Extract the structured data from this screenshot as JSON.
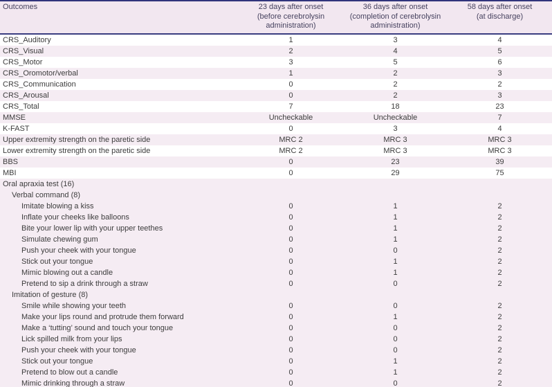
{
  "colors": {
    "border_navy": "#31347c",
    "header_separator_navy": "#3a3e80",
    "header_background_pink": "#f2e7f0",
    "row_alternate_pink": "#f5ecf3",
    "header_text": "#46425f",
    "body_text": "#3c3c3c"
  },
  "table": {
    "header": {
      "outcomes_label": "Outcomes",
      "columns": [
        "23 days after onset\n(before cerebrolysin\nadministration)",
        "36 days after onset\n(completion of cerebrolysin\nadministration)",
        "58 days after onset\n(at discharge)"
      ]
    },
    "rows": [
      {
        "label": "CRS_Auditory",
        "indent": 0,
        "shade": "white",
        "values": [
          "1",
          "3",
          "4"
        ]
      },
      {
        "label": "CRS_Visual",
        "indent": 0,
        "shade": "pink",
        "values": [
          "2",
          "4",
          "5"
        ]
      },
      {
        "label": "CRS_Motor",
        "indent": 0,
        "shade": "white",
        "values": [
          "3",
          "5",
          "6"
        ]
      },
      {
        "label": "CRS_Oromotor/verbal",
        "indent": 0,
        "shade": "pink",
        "values": [
          "1",
          "2",
          "3"
        ]
      },
      {
        "label": "CRS_Communication",
        "indent": 0,
        "shade": "white",
        "values": [
          "0",
          "2",
          "2"
        ]
      },
      {
        "label": "CRS_Arousal",
        "indent": 0,
        "shade": "pink",
        "values": [
          "0",
          "2",
          "3"
        ]
      },
      {
        "label": "CRS_Total",
        "indent": 0,
        "shade": "white",
        "values": [
          "7",
          "18",
          "23"
        ]
      },
      {
        "label": "MMSE",
        "indent": 0,
        "shade": "pink",
        "values": [
          "Uncheckable",
          "Uncheckable",
          "7"
        ]
      },
      {
        "label": "K-FAST",
        "indent": 0,
        "shade": "white",
        "values": [
          "0",
          "3",
          "4"
        ]
      },
      {
        "label": "Upper extremity strength on the paretic side",
        "indent": 0,
        "shade": "pink",
        "values": [
          "MRC 2",
          "MRC 3",
          "MRC 3"
        ]
      },
      {
        "label": "Lower extremity strength on the paretic side",
        "indent": 0,
        "shade": "white",
        "values": [
          "MRC 2",
          "MRC 3",
          "MRC 3"
        ]
      },
      {
        "label": "BBS",
        "indent": 0,
        "shade": "pink",
        "values": [
          "0",
          "23",
          "39"
        ]
      },
      {
        "label": "MBI",
        "indent": 0,
        "shade": "white",
        "values": [
          "0",
          "29",
          "75"
        ]
      },
      {
        "label": "Oral apraxia test (16)",
        "indent": 0,
        "shade": "pink",
        "values": [
          "",
          "",
          ""
        ]
      },
      {
        "label": "Verbal command (8)",
        "indent": 1,
        "shade": "pink",
        "values": [
          "",
          "",
          ""
        ]
      },
      {
        "label": "Imitate blowing a kiss",
        "indent": 2,
        "shade": "pink",
        "values": [
          "0",
          "1",
          "2"
        ]
      },
      {
        "label": "Inflate your cheeks like balloons",
        "indent": 2,
        "shade": "pink",
        "values": [
          "0",
          "1",
          "2"
        ]
      },
      {
        "label": "Bite your lower lip with your upper teethes",
        "indent": 2,
        "shade": "pink",
        "values": [
          "0",
          "1",
          "2"
        ]
      },
      {
        "label": "Simulate chewing gum",
        "indent": 2,
        "shade": "pink",
        "values": [
          "0",
          "1",
          "2"
        ]
      },
      {
        "label": "Push your cheek with your tongue",
        "indent": 2,
        "shade": "pink",
        "values": [
          "0",
          "0",
          "2"
        ]
      },
      {
        "label": "Stick out your tongue",
        "indent": 2,
        "shade": "pink",
        "values": [
          "0",
          "1",
          "2"
        ]
      },
      {
        "label": "Mimic blowing out a candle",
        "indent": 2,
        "shade": "pink",
        "values": [
          "0",
          "1",
          "2"
        ]
      },
      {
        "label": "Pretend to sip a drink through a straw",
        "indent": 2,
        "shade": "pink",
        "values": [
          "0",
          "0",
          "2"
        ]
      },
      {
        "label": "Imitation of gesture (8)",
        "indent": 1,
        "shade": "pink",
        "values": [
          "",
          "",
          ""
        ]
      },
      {
        "label": "Smile while showing your teeth",
        "indent": 2,
        "shade": "pink",
        "values": [
          "0",
          "0",
          "2"
        ]
      },
      {
        "label": "Make your lips round and protrude them forward",
        "indent": 2,
        "shade": "pink",
        "values": [
          "0",
          "1",
          "2"
        ]
      },
      {
        "label": "Make a ‘tutting’ sound and touch your tongue",
        "indent": 2,
        "shade": "pink",
        "values": [
          "0",
          "0",
          "2"
        ]
      },
      {
        "label": "Lick spilled milk from your lips",
        "indent": 2,
        "shade": "pink",
        "values": [
          "0",
          "0",
          "2"
        ]
      },
      {
        "label": "Push your cheek with your tongue",
        "indent": 2,
        "shade": "pink",
        "values": [
          "0",
          "0",
          "2"
        ]
      },
      {
        "label": "Stick out your tongue",
        "indent": 2,
        "shade": "pink",
        "values": [
          "0",
          "1",
          "2"
        ]
      },
      {
        "label": "Pretend to blow out a candle",
        "indent": 2,
        "shade": "pink",
        "values": [
          "0",
          "1",
          "2"
        ]
      },
      {
        "label": "Mimic drinking through a straw",
        "indent": 2,
        "shade": "pink",
        "values": [
          "0",
          "0",
          "2"
        ]
      }
    ]
  }
}
